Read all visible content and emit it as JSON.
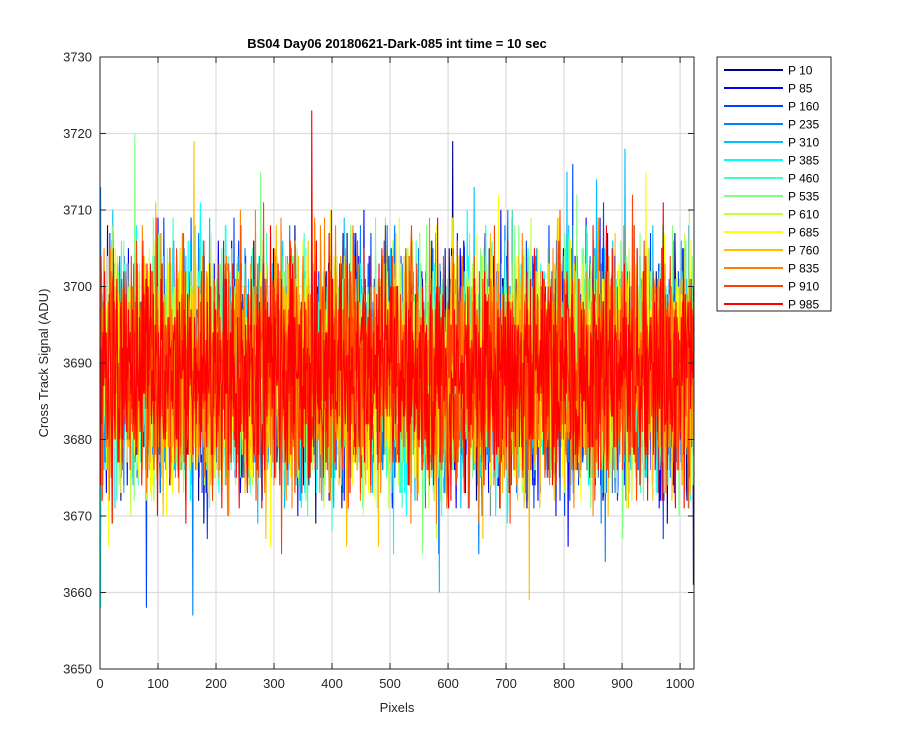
{
  "chart_data": {
    "type": "line",
    "title": "BS04 Day06 20180621-Dark-085 int time = 10 sec",
    "xlabel": "Pixels",
    "ylabel": "Cross Track Signal (ADU)",
    "xlim": [
      0,
      1024
    ],
    "ylim": [
      3650,
      3730
    ],
    "xticks": [
      0,
      100,
      200,
      300,
      400,
      500,
      600,
      700,
      800,
      900,
      1000
    ],
    "yticks": [
      3650,
      3660,
      3670,
      3680,
      3690,
      3700,
      3710,
      3720,
      3730
    ],
    "grid": true,
    "legend_position": "outside-top-right",
    "noise_model": {
      "mean": 3689,
      "std": 7.5,
      "clip": [
        3657,
        3723
      ]
    },
    "series": [
      {
        "name": "P 10",
        "color": "#00008f"
      },
      {
        "name": "P 85",
        "color": "#0000ff"
      },
      {
        "name": "P 160",
        "color": "#0040ff"
      },
      {
        "name": "P 235",
        "color": "#0080ff"
      },
      {
        "name": "P 310",
        "color": "#00bfff"
      },
      {
        "name": "P 385",
        "color": "#00ffff"
      },
      {
        "name": "P 460",
        "color": "#40ffbf"
      },
      {
        "name": "P 535",
        "color": "#80ff80"
      },
      {
        "name": "P 610",
        "color": "#bfff40"
      },
      {
        "name": "P 685",
        "color": "#ffff00"
      },
      {
        "name": "P 760",
        "color": "#ffbf00"
      },
      {
        "name": "P 835",
        "color": "#ff8000"
      },
      {
        "name": "P 910",
        "color": "#ff4000"
      },
      {
        "name": "P 985",
        "color": "#ff0000"
      }
    ],
    "notable_points": [
      {
        "series": "P 235",
        "x": 1,
        "y": 3713
      },
      {
        "series": "P 385",
        "x": 1,
        "y": 3658
      },
      {
        "series": "P 535",
        "x": 60,
        "y": 3720
      },
      {
        "series": "P 160",
        "x": 80,
        "y": 3658
      },
      {
        "series": "P 235",
        "x": 160,
        "y": 3657
      },
      {
        "series": "P 760",
        "x": 162,
        "y": 3719
      },
      {
        "series": "P 985",
        "x": 365,
        "y": 3723
      },
      {
        "series": "P 10",
        "x": 608,
        "y": 3719
      },
      {
        "series": "P 310",
        "x": 585,
        "y": 3660
      },
      {
        "series": "P 760",
        "x": 740,
        "y": 3659
      },
      {
        "series": "P 160",
        "x": 815,
        "y": 3716
      },
      {
        "series": "P 310",
        "x": 905,
        "y": 3718
      },
      {
        "series": "P 10",
        "x": 1023,
        "y": 3661
      }
    ]
  }
}
